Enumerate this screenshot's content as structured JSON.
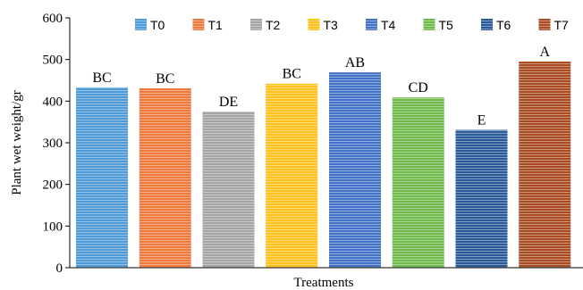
{
  "chart_data": {
    "type": "bar",
    "categories": [
      "T0",
      "T1",
      "T2",
      "T3",
      "T4",
      "T5",
      "T6",
      "T7"
    ],
    "values": [
      433,
      431,
      375,
      442,
      469,
      409,
      331,
      495
    ],
    "significance_letters": [
      "BC",
      "BC",
      "DE",
      "BC",
      "AB",
      "CD",
      "E",
      "A"
    ],
    "colors": [
      "#4f9bd8",
      "#ee7a3e",
      "#a5a5a5",
      "#ffc21c",
      "#4472c4",
      "#6fba4a",
      "#2a5a98",
      "#a84d23"
    ],
    "xlabel": "Treatments",
    "ylabel": "Plant wet weight/gr",
    "ylim": [
      0,
      600
    ],
    "yticks": [
      0,
      100,
      200,
      300,
      400,
      500,
      600
    ],
    "grid": false,
    "legend_position": "top",
    "bar_fill_pattern": "horizontal-stripes"
  }
}
